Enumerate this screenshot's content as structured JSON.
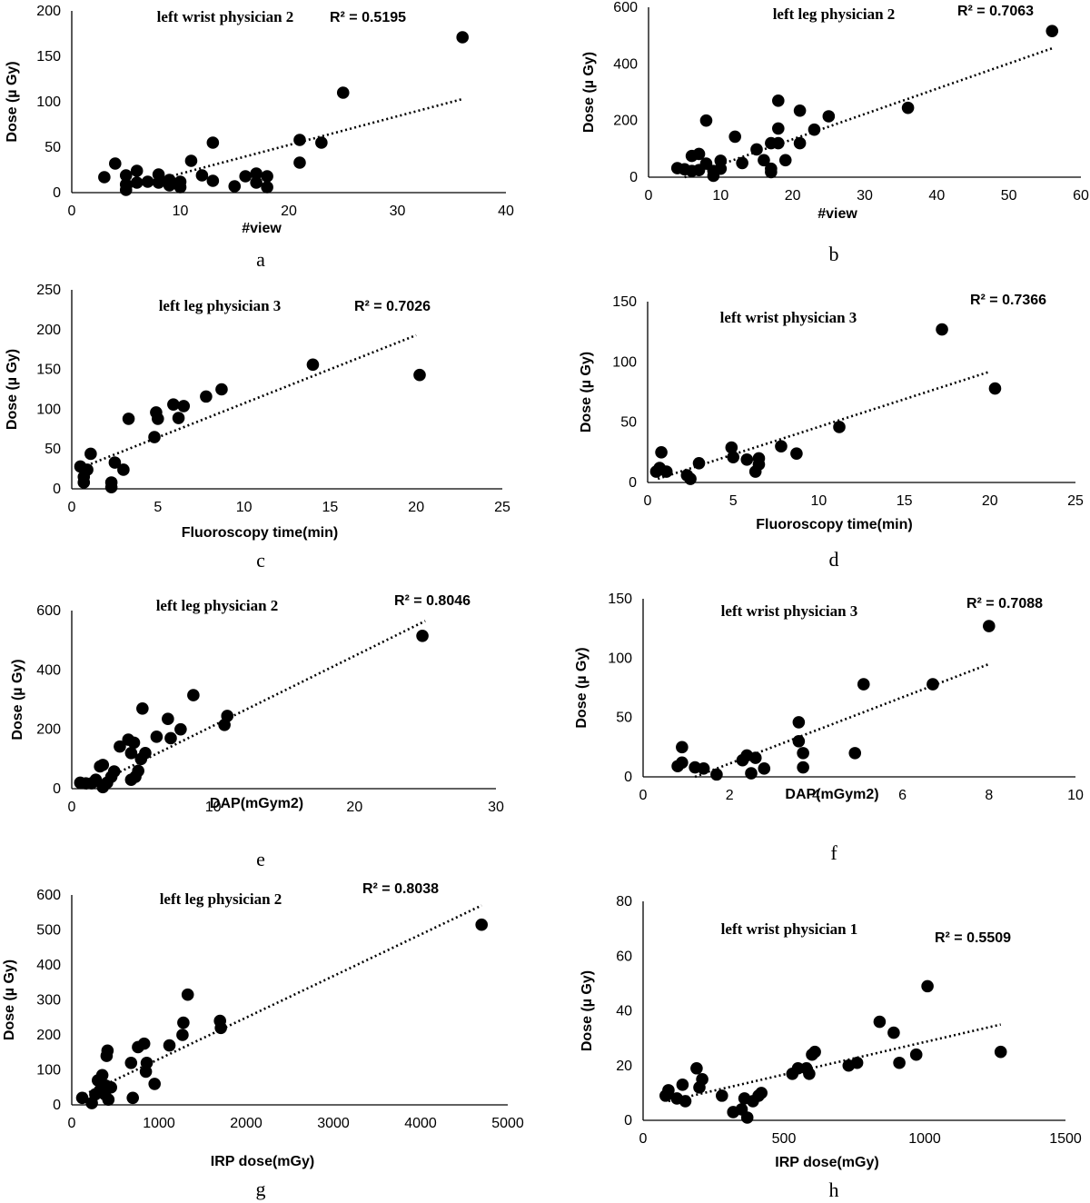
{
  "chart_data": [
    {
      "type": "scatter",
      "panel": "a",
      "title": "left wrist physician 2",
      "r2": "R² = 0.5195",
      "xlabel": "#view",
      "ylabel": "Dose (µ Gy)",
      "ylabel_color": "#808080",
      "xlim": [
        0,
        40
      ],
      "ylim": [
        0,
        200
      ],
      "xticks": [
        0,
        10,
        20,
        30,
        40
      ],
      "yticks": [
        0,
        50,
        100,
        150,
        200
      ],
      "trend": {
        "x": [
          5,
          36
        ],
        "y": [
          5,
          103
        ]
      },
      "points": [
        [
          3,
          17
        ],
        [
          4,
          32
        ],
        [
          5,
          19
        ],
        [
          5,
          3
        ],
        [
          5,
          9
        ],
        [
          6,
          11
        ],
        [
          6,
          24
        ],
        [
          7,
          12
        ],
        [
          8,
          20
        ],
        [
          8,
          11
        ],
        [
          9,
          8
        ],
        [
          9,
          14
        ],
        [
          10,
          6
        ],
        [
          10,
          12
        ],
        [
          11,
          35
        ],
        [
          12,
          19
        ],
        [
          13,
          55
        ],
        [
          13,
          13
        ],
        [
          15,
          7
        ],
        [
          16,
          18
        ],
        [
          17,
          21
        ],
        [
          17,
          11
        ],
        [
          18,
          18
        ],
        [
          18,
          6
        ],
        [
          21,
          33
        ],
        [
          21,
          58
        ],
        [
          23,
          55
        ],
        [
          25,
          110
        ],
        [
          36,
          171
        ]
      ]
    },
    {
      "type": "scatter",
      "panel": "b",
      "title": "left leg physician 2",
      "r2": "R² = 0.7063",
      "xlabel": "#view",
      "ylabel": "Dose (µ Gy)",
      "xlim": [
        0,
        60
      ],
      "ylim": [
        0,
        600
      ],
      "xticks": [
        0,
        10,
        20,
        30,
        40,
        50,
        60
      ],
      "yticks": [
        0,
        200,
        400,
        600
      ],
      "trend": {
        "x": [
          5,
          56
        ],
        "y": [
          0,
          455
        ]
      },
      "points": [
        [
          4,
          32
        ],
        [
          5,
          28
        ],
        [
          6,
          75
        ],
        [
          6,
          22
        ],
        [
          7,
          82
        ],
        [
          7,
          25
        ],
        [
          8,
          48
        ],
        [
          8,
          200
        ],
        [
          9,
          22
        ],
        [
          9,
          5
        ],
        [
          10,
          30
        ],
        [
          10,
          58
        ],
        [
          12,
          143
        ],
        [
          13,
          50
        ],
        [
          15,
          98
        ],
        [
          16,
          60
        ],
        [
          17,
          120
        ],
        [
          17,
          18
        ],
        [
          17,
          30
        ],
        [
          18,
          120
        ],
        [
          18,
          172
        ],
        [
          18,
          270
        ],
        [
          19,
          60
        ],
        [
          21,
          235
        ],
        [
          21,
          120
        ],
        [
          23,
          168
        ],
        [
          25,
          215
        ],
        [
          36,
          245
        ],
        [
          56,
          516
        ]
      ]
    },
    {
      "type": "scatter",
      "panel": "c",
      "title": "left leg physician 3",
      "r2": "R² = 0.7026",
      "xlabel": "Fluoroscopy time(min)",
      "ylabel": "Dose (µ Gy)",
      "xlim": [
        0,
        25
      ],
      "ylim": [
        0,
        250
      ],
      "xticks": [
        0,
        5,
        10,
        15,
        20,
        25
      ],
      "yticks": [
        0,
        50,
        100,
        150,
        200,
        250
      ],
      "trend": {
        "x": [
          0.6,
          20
        ],
        "y": [
          27,
          193
        ]
      },
      "points": [
        [
          0.5,
          28
        ],
        [
          0.7,
          15
        ],
        [
          0.7,
          8
        ],
        [
          0.9,
          24
        ],
        [
          1.1,
          44
        ],
        [
          2.3,
          8
        ],
        [
          2.3,
          2
        ],
        [
          2.5,
          33
        ],
        [
          3.0,
          24
        ],
        [
          3.3,
          88
        ],
        [
          4.8,
          65
        ],
        [
          4.9,
          96
        ],
        [
          5.0,
          88
        ],
        [
          5.9,
          106
        ],
        [
          6.2,
          89
        ],
        [
          6.5,
          104
        ],
        [
          7.8,
          116
        ],
        [
          8.7,
          125
        ],
        [
          14.0,
          156
        ],
        [
          20.2,
          143
        ]
      ]
    },
    {
      "type": "scatter",
      "panel": "d",
      "title": "left wrist physician 3",
      "r2": "R² = 0.7366",
      "xlabel": "Fluoroscopy time(min)",
      "ylabel": "Dose (µ Gy)",
      "xlim": [
        0,
        25
      ],
      "ylim": [
        0,
        150
      ],
      "xticks": [
        0,
        5,
        10,
        15,
        20,
        25
      ],
      "yticks": [
        0,
        50,
        100,
        150
      ],
      "trend": {
        "x": [
          0.6,
          20
        ],
        "y": [
          3,
          92
        ]
      },
      "points": [
        [
          0.5,
          9
        ],
        [
          0.7,
          12
        ],
        [
          0.8,
          25
        ],
        [
          1.1,
          9
        ],
        [
          2.3,
          6
        ],
        [
          2.5,
          3
        ],
        [
          3.0,
          16
        ],
        [
          4.9,
          29
        ],
        [
          5.0,
          21
        ],
        [
          5.8,
          19
        ],
        [
          6.3,
          9
        ],
        [
          6.5,
          20
        ],
        [
          6.5,
          15
        ],
        [
          7.8,
          30
        ],
        [
          8.7,
          24
        ],
        [
          11.2,
          46
        ],
        [
          17.2,
          127
        ],
        [
          20.3,
          78
        ]
      ]
    },
    {
      "type": "scatter",
      "panel": "e",
      "title": "left leg physician 2",
      "r2": "R² = 0.8046",
      "xlabel": "DAP(mGym2)",
      "ylabel": "Dose (µ Gy)",
      "xlim": [
        0,
        30
      ],
      "ylim": [
        0,
        600
      ],
      "xticks": [
        0,
        10,
        20,
        30
      ],
      "yticks": [
        0,
        200,
        400,
        600
      ],
      "trend": {
        "x": [
          1,
          25
        ],
        "y": [
          0,
          565
        ]
      },
      "points": [
        [
          0.6,
          20
        ],
        [
          1.0,
          18
        ],
        [
          1.4,
          18
        ],
        [
          1.7,
          30
        ],
        [
          2.0,
          75
        ],
        [
          2.2,
          80
        ],
        [
          2.2,
          5
        ],
        [
          2.5,
          20
        ],
        [
          2.8,
          40
        ],
        [
          3.0,
          58
        ],
        [
          3.4,
          142
        ],
        [
          4.0,
          165
        ],
        [
          4.2,
          30
        ],
        [
          4.2,
          120
        ],
        [
          4.4,
          155
        ],
        [
          4.5,
          40
        ],
        [
          4.7,
          60
        ],
        [
          4.9,
          100
        ],
        [
          5.2,
          120
        ],
        [
          5.0,
          270
        ],
        [
          6.0,
          175
        ],
        [
          6.8,
          235
        ],
        [
          7.0,
          170
        ],
        [
          7.7,
          200
        ],
        [
          8.6,
          315
        ],
        [
          10.8,
          215
        ],
        [
          11.0,
          245
        ],
        [
          24.8,
          515
        ]
      ]
    },
    {
      "type": "scatter",
      "panel": "f",
      "title": "left wrist physician 3",
      "r2": "R² = 0.7088",
      "xlabel": "DAP(mGym2)",
      "ylabel": "Dose (µ Gy)",
      "xlim": [
        0,
        10
      ],
      "ylim": [
        0,
        150
      ],
      "xticks": [
        0,
        2,
        4,
        6,
        8,
        10
      ],
      "yticks": [
        0,
        50,
        100,
        150
      ],
      "trend": {
        "x": [
          1.2,
          8
        ],
        "y": [
          0,
          95
        ]
      },
      "points": [
        [
          0.8,
          9
        ],
        [
          0.9,
          12
        ],
        [
          0.9,
          25
        ],
        [
          1.2,
          8
        ],
        [
          1.4,
          7
        ],
        [
          1.7,
          2
        ],
        [
          2.3,
          14
        ],
        [
          2.4,
          18
        ],
        [
          2.5,
          3
        ],
        [
          2.6,
          16
        ],
        [
          2.8,
          7
        ],
        [
          3.6,
          46
        ],
        [
          3.6,
          30
        ],
        [
          3.7,
          8
        ],
        [
          3.7,
          20
        ],
        [
          4.9,
          20
        ],
        [
          5.1,
          78
        ],
        [
          6.7,
          78
        ],
        [
          8.0,
          127
        ]
      ]
    },
    {
      "type": "scatter",
      "panel": "g",
      "title": "left leg physician 2",
      "r2": "R² = 0.8038",
      "xlabel": "IRP dose(mGy)",
      "ylabel": "Dose (µ Gy)",
      "xlim": [
        0,
        5000
      ],
      "ylim": [
        0,
        600
      ],
      "xticks": [
        0,
        1000,
        2000,
        3000,
        4000,
        5000
      ],
      "yticks": [
        0,
        100,
        200,
        300,
        400,
        500,
        600
      ],
      "trend": {
        "x": [
          150,
          4700
        ],
        "y": [
          30,
          570
        ]
      },
      "points": [
        [
          120,
          20
        ],
        [
          230,
          5
        ],
        [
          270,
          30
        ],
        [
          300,
          70
        ],
        [
          320,
          40
        ],
        [
          350,
          85
        ],
        [
          380,
          30
        ],
        [
          390,
          55
        ],
        [
          400,
          140
        ],
        [
          410,
          155
        ],
        [
          420,
          15
        ],
        [
          450,
          50
        ],
        [
          680,
          120
        ],
        [
          700,
          20
        ],
        [
          760,
          165
        ],
        [
          830,
          175
        ],
        [
          850,
          95
        ],
        [
          860,
          120
        ],
        [
          950,
          60
        ],
        [
          1120,
          170
        ],
        [
          1270,
          200
        ],
        [
          1280,
          235
        ],
        [
          1330,
          315
        ],
        [
          1700,
          240
        ],
        [
          1710,
          220
        ],
        [
          4700,
          515
        ]
      ]
    },
    {
      "type": "scatter",
      "panel": "h",
      "title": "left wrist physician 1",
      "r2": "R² = 0.5509",
      "xlabel": "IRP dose(mGy)",
      "ylabel": "Dose (µ Gy)",
      "xlim": [
        0,
        1500
      ],
      "ylim": [
        0,
        80
      ],
      "xticks": [
        0,
        500,
        1000,
        1500
      ],
      "yticks": [
        0,
        20,
        40,
        60,
        80
      ],
      "trend": {
        "x": [
          90,
          1270
        ],
        "y": [
          7,
          35
        ]
      },
      "points": [
        [
          80,
          9
        ],
        [
          90,
          11
        ],
        [
          120,
          8
        ],
        [
          140,
          13
        ],
        [
          150,
          7
        ],
        [
          190,
          19
        ],
        [
          200,
          12
        ],
        [
          210,
          15
        ],
        [
          280,
          9
        ],
        [
          320,
          3
        ],
        [
          350,
          4
        ],
        [
          360,
          8
        ],
        [
          370,
          1
        ],
        [
          390,
          7
        ],
        [
          410,
          9
        ],
        [
          420,
          10
        ],
        [
          530,
          17
        ],
        [
          550,
          19
        ],
        [
          580,
          19
        ],
        [
          600,
          24
        ],
        [
          590,
          17
        ],
        [
          610,
          25
        ],
        [
          730,
          20
        ],
        [
          760,
          21
        ],
        [
          840,
          36
        ],
        [
          890,
          32
        ],
        [
          910,
          21
        ],
        [
          970,
          24
        ],
        [
          1010,
          49
        ],
        [
          1270,
          25
        ]
      ]
    }
  ]
}
